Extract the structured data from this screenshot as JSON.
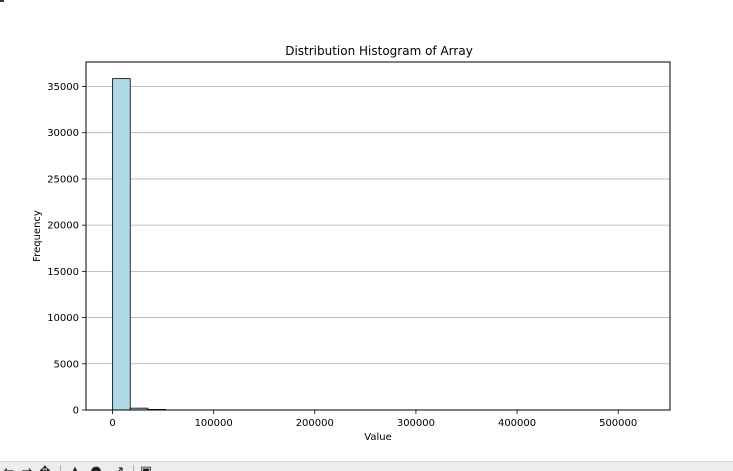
{
  "toolbar": {
    "icons": [
      "back-arrow-icon",
      "forward-arrow-icon",
      "pan-icon",
      "zoom-icon",
      "configure-subplots-icon",
      "save-icon"
    ]
  },
  "chart_data": {
    "type": "bar",
    "title": "Distribution Histogram of Array",
    "xlabel": "Value",
    "ylabel": "Frequency",
    "bins": [
      {
        "start": 0,
        "end": 17500,
        "count": 35850
      },
      {
        "start": 17500,
        "end": 35000,
        "count": 200
      },
      {
        "start": 35000,
        "end": 52500,
        "count": 60
      },
      {
        "start": 52500,
        "end": 70000,
        "count": 10
      },
      {
        "start": 70000,
        "end": 87500,
        "count": 3
      }
    ],
    "xlim": [
      -26250,
      551250
    ],
    "ylim": [
      0,
      37650
    ],
    "xticks": [
      0,
      100000,
      200000,
      300000,
      400000,
      500000
    ],
    "yticks": [
      0,
      5000,
      10000,
      15000,
      20000,
      25000,
      30000,
      35000
    ],
    "grid": "y",
    "bar_color": "#ADD8E6",
    "edge_color": "#000000",
    "grid_color": "#b0b0b0"
  }
}
